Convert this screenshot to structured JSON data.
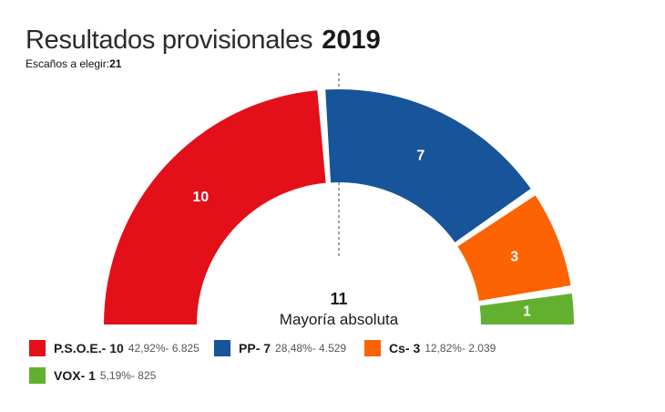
{
  "header": {
    "title": "Resultados provisionales",
    "year": "2019",
    "seats_label": "Escaños a elegir:",
    "seats_total": "21"
  },
  "majority": {
    "value": "11",
    "label": "Mayoría absoluta"
  },
  "chart_data": {
    "type": "pie",
    "subtype": "parliament-semicircle",
    "title": "Resultados provisionales 2019",
    "total_seats": 21,
    "majority": 11,
    "categories": [
      "P.S.O.E.",
      "PP",
      "Cs",
      "VOX"
    ],
    "values": [
      10,
      7,
      3,
      1
    ],
    "colors": [
      "#e3101a",
      "#175499",
      "#fd6203",
      "#63b030"
    ],
    "series": [
      {
        "name": "P.S.O.E.",
        "seats": 10,
        "percent": "42,92%",
        "votes": "6.825",
        "color": "#e3101a"
      },
      {
        "name": "PP",
        "seats": 7,
        "percent": "28,48%",
        "votes": "4.529",
        "color": "#175499"
      },
      {
        "name": "Cs",
        "seats": 3,
        "percent": "12,82%",
        "votes": "2.039",
        "color": "#fd6203"
      },
      {
        "name": "VOX",
        "seats": 1,
        "percent": "5,19%",
        "votes": "825",
        "color": "#63b030"
      }
    ]
  },
  "legend": [
    {
      "name": "P.S.O.E.",
      "seats_text": "- 10",
      "stats": "42,92%- 6.825",
      "color": "#e3101a"
    },
    {
      "name": "PP",
      "seats_text": "- 7",
      "stats": "28,48%- 4.529",
      "color": "#175499"
    },
    {
      "name": "Cs",
      "seats_text": "- 3",
      "stats": "12,82%- 2.039",
      "color": "#fd6203"
    },
    {
      "name": "VOX",
      "seats_text": "- 1",
      "stats": "5,19%- 825",
      "color": "#63b030"
    }
  ]
}
